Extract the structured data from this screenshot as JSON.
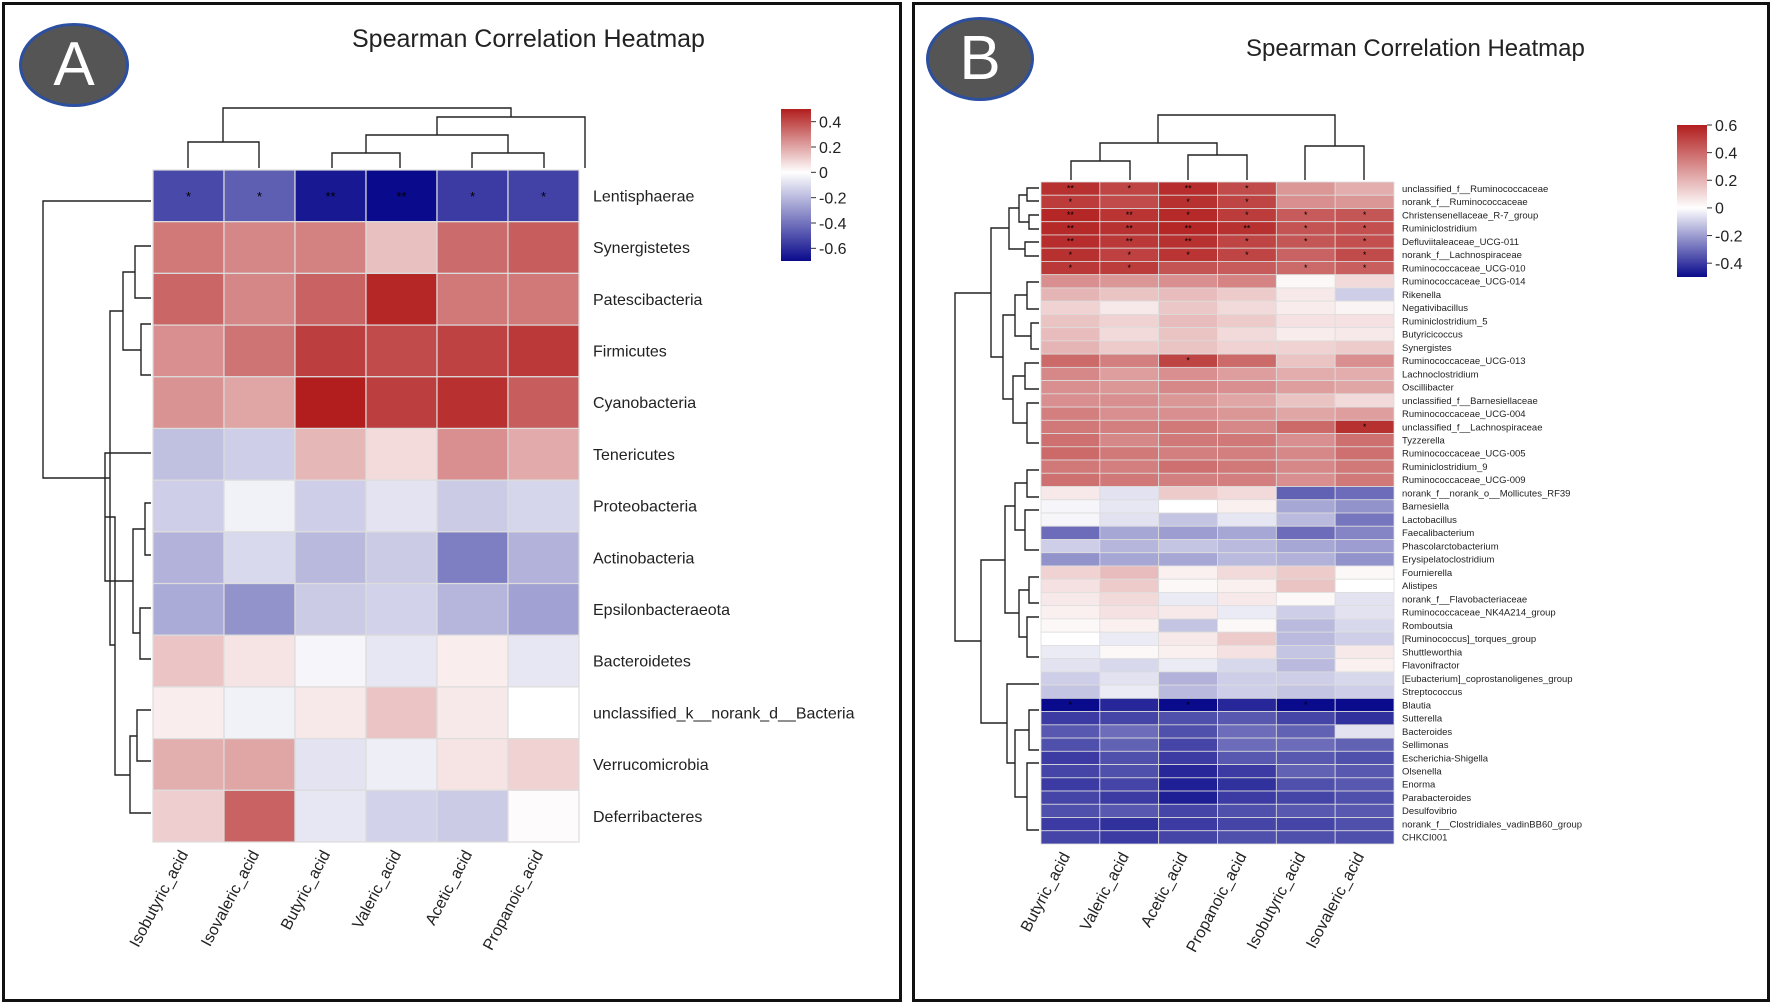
{
  "colors": {
    "neg": "#0a0a8c",
    "mid": "#ffffff",
    "pos": "#b21e1e",
    "grid": "#dddddd"
  },
  "chart_data": [
    {
      "type": "heatmap",
      "panel_label": "A",
      "title": "Spearman Correlation Heatmap",
      "columns": [
        "Isobutyric_acid",
        "Isovaleric_acid",
        "Butyric_acid",
        "Valeric_acid",
        "Acetic_acid",
        "Propanoic_acid"
      ],
      "rows": [
        "Lentisphaerae",
        "Synergistetes",
        "Patescibacteria",
        "Firmicutes",
        "Cyanobacteria",
        "Tenericutes",
        "Proteobacteria",
        "Actinobacteria",
        "Epsilonbacteraeota",
        "Bacteroidetes",
        "unclassified_k__norank_d__Bacteria",
        "Verrucomicrobia",
        "Deferribacteres"
      ],
      "values": [
        [
          -0.52,
          -0.46,
          -0.66,
          -0.7,
          -0.56,
          -0.54
        ],
        [
          0.3,
          0.27,
          0.28,
          0.14,
          0.33,
          0.36
        ],
        [
          0.34,
          0.27,
          0.35,
          0.48,
          0.3,
          0.3
        ],
        [
          0.25,
          0.31,
          0.43,
          0.4,
          0.42,
          0.44
        ],
        [
          0.24,
          0.2,
          0.52,
          0.43,
          0.46,
          0.36
        ],
        [
          -0.18,
          -0.14,
          0.16,
          0.08,
          0.25,
          0.19
        ],
        [
          -0.14,
          -0.04,
          -0.14,
          -0.08,
          -0.15,
          -0.12
        ],
        [
          -0.22,
          -0.11,
          -0.2,
          -0.15,
          -0.37,
          -0.22
        ],
        [
          -0.24,
          -0.31,
          -0.15,
          -0.13,
          -0.21,
          -0.27
        ],
        [
          0.13,
          0.06,
          -0.03,
          -0.07,
          0.04,
          -0.07
        ],
        [
          0.04,
          -0.04,
          0.05,
          0.13,
          0.05,
          0.0
        ],
        [
          0.18,
          0.2,
          -0.08,
          -0.05,
          0.06,
          0.1
        ],
        [
          0.11,
          0.35,
          -0.07,
          -0.13,
          -0.15,
          0.01
        ]
      ],
      "significance": [
        [
          "*",
          "*",
          "**",
          "**",
          "*",
          "*"
        ],
        [
          "",
          "",
          "",
          "",
          "",
          ""
        ],
        [
          "",
          "",
          "",
          "",
          "",
          ""
        ],
        [
          "",
          "",
          "",
          "",
          "",
          ""
        ],
        [
          "",
          "",
          "",
          "",
          "",
          ""
        ],
        [
          "",
          "",
          "",
          "",
          "",
          ""
        ],
        [
          "",
          "",
          "",
          "",
          "",
          ""
        ],
        [
          "",
          "",
          "",
          "",
          "",
          ""
        ],
        [
          "",
          "",
          "",
          "",
          "",
          ""
        ],
        [
          "",
          "",
          "",
          "",
          "",
          ""
        ],
        [
          "",
          "",
          "",
          "",
          "",
          ""
        ],
        [
          "",
          "",
          "",
          "",
          "",
          ""
        ],
        [
          "",
          "",
          "",
          "",
          "",
          ""
        ]
      ],
      "colorbar": {
        "vmin": -0.7,
        "vmax": 0.5,
        "ticks": [
          0.4,
          0.2,
          0,
          -0.2,
          -0.4,
          -0.6
        ],
        "tick_labels": [
          "0.4",
          "0.2",
          "0",
          "-0.2",
          "-0.4",
          "-0.6"
        ]
      }
    },
    {
      "type": "heatmap",
      "panel_label": "B",
      "title": "Spearman Correlation Heatmap",
      "columns": [
        "Butyric_acid",
        "Valeric_acid",
        "Acetic_acid",
        "Propanoic_acid",
        "Isobutyric_acid",
        "Isovaleric_acid"
      ],
      "rows": [
        "unclassified_f__Ruminococcaceae",
        "norank_f__Ruminococcaceae",
        "Christensenellaceae_R-7_group",
        "Ruminiclostridium",
        "Defluviitaleaceae_UCG-011",
        "norank_f__Lachnospiraceae",
        "Ruminococcaceae_UCG-010",
        "Ruminococcaceae_UCG-014",
        "Rikenella",
        "Negativibacillus",
        "Ruminiclostridium_5",
        "Butyricicoccus",
        "Synergistes",
        "Ruminococcaceae_UCG-013",
        "Lachnoclostridium",
        "Oscillibacter",
        "unclassified_f__Barnesiellaceae",
        "Ruminococcaceae_UCG-004",
        "unclassified_f__Lachnospiraceae",
        "Tyzzerella",
        "Ruminococcaceae_UCG-005",
        "Ruminiclostridium_9",
        "Ruminococcaceae_UCG-009",
        "norank_f__norank_o__Mollicutes_RF39",
        "Barnesiella",
        "Lactobacillus",
        "Faecalibacterium",
        "Phascolarctobacterium",
        "Erysipelatoclostridium",
        "Fournierella",
        "Alistipes",
        "norank_f__Flavobacteriaceae",
        "Ruminococcaceae_NK4A214_group",
        "Romboutsia",
        "[Ruminococcus]_torques_group",
        "Shuttleworthia",
        "Flavonifractor",
        "[Eubacterium]_coprostanoligenes_group",
        "Streptococcus",
        "Blautia",
        "Sutterella",
        "Bacteroides",
        "Sellimonas",
        "Escherichia-Shigella",
        "Olsenella",
        "Enorma",
        "Parabacteroides",
        "Desulfovibrio",
        "norank_f__Clostridiales_vadinBB60_group",
        "CHKCI001"
      ],
      "values": [
        [
          0.55,
          0.5,
          0.56,
          0.48,
          0.28,
          0.22
        ],
        [
          0.52,
          0.48,
          0.55,
          0.5,
          0.3,
          0.28
        ],
        [
          0.58,
          0.54,
          0.57,
          0.52,
          0.44,
          0.45
        ],
        [
          0.57,
          0.55,
          0.58,
          0.55,
          0.46,
          0.47
        ],
        [
          0.56,
          0.53,
          0.55,
          0.5,
          0.45,
          0.47
        ],
        [
          0.55,
          0.51,
          0.54,
          0.5,
          0.42,
          0.48
        ],
        [
          0.53,
          0.52,
          0.46,
          0.44,
          0.4,
          0.43
        ],
        [
          0.3,
          0.28,
          0.3,
          0.33,
          0.02,
          0.1
        ],
        [
          0.2,
          0.16,
          0.18,
          0.14,
          0.06,
          -0.1
        ],
        [
          0.12,
          0.06,
          0.15,
          0.1,
          0.05,
          0.03
        ],
        [
          0.16,
          0.12,
          0.18,
          0.14,
          0.08,
          0.08
        ],
        [
          0.18,
          0.1,
          0.16,
          0.1,
          0.05,
          0.06
        ],
        [
          0.2,
          0.14,
          0.16,
          0.12,
          0.12,
          0.14
        ],
        [
          0.4,
          0.34,
          0.5,
          0.4,
          0.16,
          0.3
        ],
        [
          0.32,
          0.26,
          0.3,
          0.26,
          0.22,
          0.22
        ],
        [
          0.3,
          0.28,
          0.32,
          0.3,
          0.26,
          0.24
        ],
        [
          0.3,
          0.3,
          0.28,
          0.24,
          0.16,
          0.1
        ],
        [
          0.34,
          0.3,
          0.3,
          0.28,
          0.24,
          0.26
        ],
        [
          0.36,
          0.34,
          0.36,
          0.32,
          0.4,
          0.55
        ],
        [
          0.38,
          0.32,
          0.36,
          0.36,
          0.3,
          0.38
        ],
        [
          0.4,
          0.36,
          0.34,
          0.34,
          0.32,
          0.38
        ],
        [
          0.36,
          0.34,
          0.38,
          0.36,
          0.32,
          0.36
        ],
        [
          0.38,
          0.36,
          0.34,
          0.34,
          0.3,
          0.36
        ],
        [
          0.06,
          -0.06,
          0.14,
          0.1,
          -0.32,
          -0.3
        ],
        [
          -0.02,
          -0.05,
          0.0,
          0.04,
          -0.18,
          -0.22
        ],
        [
          -0.02,
          -0.06,
          -0.12,
          -0.05,
          -0.14,
          -0.28
        ],
        [
          -0.3,
          -0.18,
          -0.2,
          -0.18,
          -0.3,
          -0.25
        ],
        [
          -0.1,
          -0.15,
          -0.12,
          -0.14,
          -0.18,
          -0.2
        ],
        [
          -0.22,
          -0.18,
          -0.18,
          -0.14,
          -0.16,
          -0.22
        ],
        [
          0.12,
          0.18,
          0.04,
          0.1,
          0.14,
          0.02
        ],
        [
          0.08,
          0.14,
          0.02,
          0.04,
          0.16,
          0.0
        ],
        [
          0.06,
          0.1,
          -0.04,
          0.06,
          0.02,
          -0.06
        ],
        [
          0.04,
          0.08,
          0.06,
          -0.04,
          -0.1,
          -0.06
        ],
        [
          0.02,
          0.04,
          -0.12,
          0.02,
          -0.14,
          -0.08
        ],
        [
          0.0,
          -0.04,
          0.06,
          0.14,
          -0.14,
          -0.1
        ],
        [
          -0.04,
          0.02,
          0.04,
          0.08,
          -0.12,
          0.06
        ],
        [
          -0.06,
          -0.08,
          -0.04,
          -0.08,
          -0.14,
          0.04
        ],
        [
          -0.1,
          -0.06,
          -0.16,
          -0.1,
          -0.1,
          -0.08
        ],
        [
          -0.12,
          -0.04,
          -0.14,
          -0.1,
          -0.12,
          -0.1
        ],
        [
          -0.52,
          -0.44,
          -0.52,
          -0.44,
          -0.54,
          -0.52
        ],
        [
          -0.4,
          -0.38,
          -0.36,
          -0.34,
          -0.38,
          -0.42
        ],
        [
          -0.34,
          -0.3,
          -0.36,
          -0.3,
          -0.32,
          -0.06
        ],
        [
          -0.36,
          -0.32,
          -0.38,
          -0.3,
          -0.3,
          -0.32
        ],
        [
          -0.4,
          -0.36,
          -0.4,
          -0.34,
          -0.34,
          -0.36
        ],
        [
          -0.38,
          -0.36,
          -0.44,
          -0.4,
          -0.32,
          -0.34
        ],
        [
          -0.4,
          -0.38,
          -0.46,
          -0.42,
          -0.36,
          -0.34
        ],
        [
          -0.38,
          -0.4,
          -0.46,
          -0.4,
          -0.38,
          -0.36
        ],
        [
          -0.36,
          -0.34,
          -0.38,
          -0.36,
          -0.34,
          -0.34
        ],
        [
          -0.4,
          -0.42,
          -0.4,
          -0.38,
          -0.38,
          -0.36
        ],
        [
          -0.38,
          -0.4,
          -0.38,
          -0.36,
          -0.36,
          -0.36
        ]
      ],
      "significance": [
        [
          "**",
          "*",
          "**",
          "*",
          "",
          ""
        ],
        [
          "*",
          "",
          "*",
          "*",
          "",
          ""
        ],
        [
          "**",
          "**",
          "*",
          "*",
          "*",
          "*"
        ],
        [
          "**",
          "**",
          "**",
          "**",
          "*",
          "*"
        ],
        [
          "**",
          "**",
          "**",
          "*",
          "*",
          "*"
        ],
        [
          "*",
          "*",
          "*",
          "*",
          "",
          "*"
        ],
        [
          "*",
          "*",
          "",
          "",
          "*",
          "*"
        ],
        [
          "",
          "",
          "",
          "",
          "",
          ""
        ],
        [
          "",
          "",
          "",
          "",
          "",
          ""
        ],
        [
          "",
          "",
          "",
          "",
          "",
          ""
        ],
        [
          "",
          "",
          "",
          "",
          "",
          ""
        ],
        [
          "",
          "",
          "",
          "",
          "",
          ""
        ],
        [
          "",
          "",
          "",
          "",
          "",
          ""
        ],
        [
          "",
          "",
          "*",
          "",
          "",
          ""
        ],
        [
          "",
          "",
          "",
          "",
          "",
          ""
        ],
        [
          "",
          "",
          "",
          "",
          "",
          ""
        ],
        [
          "",
          "",
          "",
          "",
          "",
          ""
        ],
        [
          "",
          "",
          "",
          "",
          "",
          ""
        ],
        [
          "",
          "",
          "",
          "",
          "",
          "*"
        ],
        [
          "",
          "",
          "",
          "",
          "",
          ""
        ],
        [
          "",
          "",
          "",
          "",
          "",
          ""
        ],
        [
          "",
          "",
          "",
          "",
          "",
          ""
        ],
        [
          "",
          "",
          "",
          "",
          "",
          ""
        ],
        [
          "",
          "",
          "",
          "",
          "",
          ""
        ],
        [
          "",
          "",
          "",
          "",
          "",
          ""
        ],
        [
          "",
          "",
          "",
          "",
          "",
          ""
        ],
        [
          "",
          "",
          "",
          "",
          "",
          ""
        ],
        [
          "",
          "",
          "",
          "",
          "",
          ""
        ],
        [
          "",
          "",
          "",
          "",
          "",
          ""
        ],
        [
          "",
          "",
          "",
          "",
          "",
          ""
        ],
        [
          "",
          "",
          "",
          "",
          "",
          ""
        ],
        [
          "",
          "",
          "",
          "",
          "",
          ""
        ],
        [
          "",
          "",
          "",
          "",
          "",
          ""
        ],
        [
          "",
          "",
          "",
          "",
          "",
          ""
        ],
        [
          "",
          "",
          "",
          "",
          "",
          ""
        ],
        [
          "",
          "",
          "",
          "",
          "",
          ""
        ],
        [
          "",
          "",
          "",
          "",
          "",
          ""
        ],
        [
          "",
          "",
          "",
          "",
          "",
          ""
        ],
        [
          "",
          "",
          "",
          "",
          "",
          ""
        ],
        [
          "*",
          "",
          "*",
          "",
          "*",
          ""
        ],
        [
          "",
          "",
          "",
          "",
          "",
          ""
        ],
        [
          "",
          "",
          "",
          "",
          "",
          ""
        ],
        [
          "",
          "",
          "",
          "",
          "",
          ""
        ],
        [
          "",
          "",
          "",
          "",
          "",
          ""
        ],
        [
          "",
          "",
          "",
          "",
          "",
          ""
        ],
        [
          "",
          "",
          "",
          "",
          "",
          ""
        ],
        [
          "",
          "",
          "",
          "",
          "",
          ""
        ],
        [
          "",
          "",
          "",
          "",
          "",
          ""
        ],
        [
          "",
          "",
          "",
          "",
          "",
          ""
        ],
        [
          "",
          "",
          "",
          "",
          "",
          ""
        ]
      ],
      "colorbar": {
        "vmin": -0.5,
        "vmax": 0.6,
        "ticks": [
          0.6,
          0.4,
          0.2,
          0,
          -0.2,
          -0.4
        ],
        "tick_labels": [
          "0.6",
          "0.4",
          "0.2",
          "0",
          "-0.2",
          "-0.4"
        ]
      }
    }
  ]
}
